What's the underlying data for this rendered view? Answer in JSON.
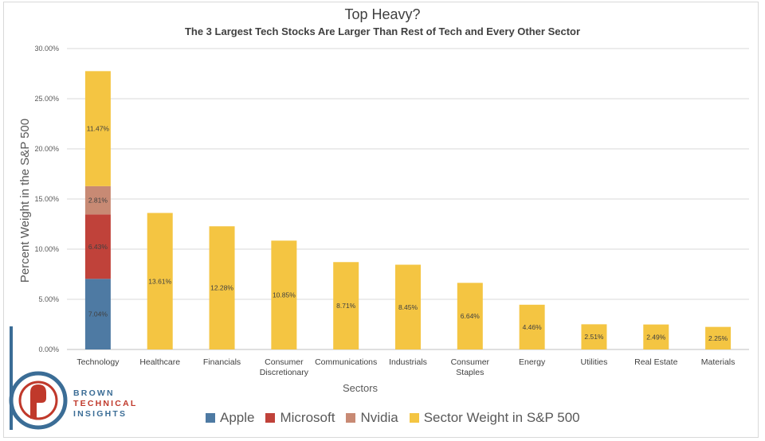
{
  "title": "Top Heavy?",
  "subtitle": "The 3 Largest Tech Stocks Are Larger Than Rest of Tech and Every Other Sector",
  "logo": {
    "line1": "BROWN",
    "line2": "TECHNICAL",
    "line3": "INSIGHTS"
  },
  "colors": {
    "apple": "#4e7aa3",
    "microsoft": "#c0423a",
    "nvidia": "#c88a74",
    "sector": "#f4c542",
    "grid": "#d9d9d9",
    "logo_blue": "#3b6d96",
    "logo_red": "#c0392b"
  },
  "chart_data": {
    "type": "bar",
    "stacked": true,
    "title": "Top Heavy?",
    "subtitle": "The 3 Largest Tech Stocks Are Larger Than Rest of Tech and Every Other Sector",
    "xlabel": "Sectors",
    "ylabel": "Percent Weight in the S&P 500",
    "ylim": [
      0,
      30
    ],
    "yticks": [
      "0.00%",
      "5.00%",
      "10.00%",
      "15.00%",
      "20.00%",
      "25.00%",
      "30.00%"
    ],
    "grid": true,
    "legend_position": "bottom",
    "categories": [
      "Technology",
      "Healthcare",
      "Financials",
      "Consumer Discretionary",
      "Communications",
      "Industrials",
      "Consumer Staples",
      "Energy",
      "Utilities",
      "Real Estate",
      "Materials"
    ],
    "series": [
      {
        "name": "Apple",
        "values": [
          7.04,
          null,
          null,
          null,
          null,
          null,
          null,
          null,
          null,
          null,
          null
        ],
        "labels": [
          "7.04%",
          null,
          null,
          null,
          null,
          null,
          null,
          null,
          null,
          null,
          null
        ]
      },
      {
        "name": "Microsoft",
        "values": [
          6.43,
          null,
          null,
          null,
          null,
          null,
          null,
          null,
          null,
          null,
          null
        ],
        "labels": [
          "6.43%",
          null,
          null,
          null,
          null,
          null,
          null,
          null,
          null,
          null,
          null
        ]
      },
      {
        "name": "Nvidia",
        "values": [
          2.81,
          null,
          null,
          null,
          null,
          null,
          null,
          null,
          null,
          null,
          null
        ],
        "labels": [
          "2.81%",
          null,
          null,
          null,
          null,
          null,
          null,
          null,
          null,
          null,
          null
        ]
      },
      {
        "name": "Sector Weight in S&P 500",
        "values": [
          11.47,
          13.61,
          12.28,
          10.85,
          8.71,
          8.45,
          6.64,
          4.46,
          2.51,
          2.49,
          2.25
        ],
        "labels": [
          "11.47%",
          "13.61%",
          "12.28%",
          "10.85%",
          "8.71%",
          "8.45%",
          "6.64%",
          "4.46%",
          "2.51%",
          "2.49%",
          "2.25%"
        ]
      }
    ]
  }
}
